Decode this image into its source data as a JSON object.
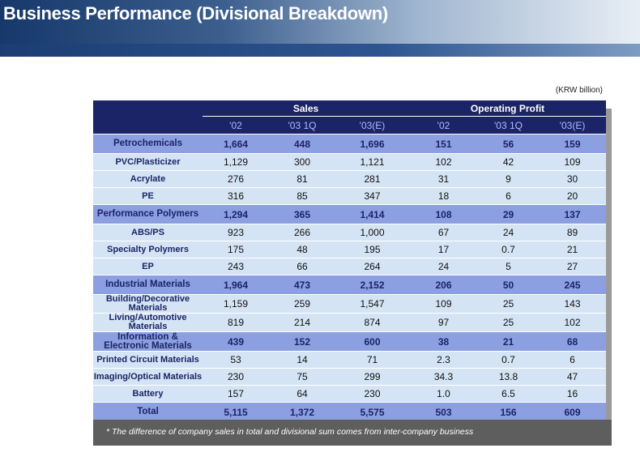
{
  "header": {
    "title": "Business Performance (Divisional Breakdown)"
  },
  "unit": "(KRW billion)",
  "table": {
    "group_headers": [
      "Sales",
      "Operating Profit"
    ],
    "columns": [
      "'02",
      "'03 1Q",
      "'03(E)",
      "'02",
      "'03 1Q",
      "'03(E)"
    ],
    "rows": [
      {
        "label": "Petrochemicals",
        "major": true,
        "cells": [
          "1,664",
          "448",
          "1,696",
          "151",
          "56",
          "159"
        ]
      },
      {
        "label": "PVC/Plasticizer",
        "cells": [
          "1,129",
          "300",
          "1,121",
          "102",
          "42",
          "109"
        ]
      },
      {
        "label": "Acrylate",
        "cells": [
          "276",
          "81",
          "281",
          "31",
          "9",
          "30"
        ]
      },
      {
        "label": "PE",
        "cells": [
          "316",
          "85",
          "347",
          "18",
          "6",
          "20"
        ]
      },
      {
        "label": "Performance Polymers",
        "major": true,
        "cells": [
          "1,294",
          "365",
          "1,414",
          "108",
          "29",
          "137"
        ]
      },
      {
        "label": "ABS/PS",
        "cells": [
          "923",
          "266",
          "1,000",
          "67",
          "24",
          "89"
        ]
      },
      {
        "label": "Specialty Polymers",
        "cells": [
          "175",
          "48",
          "195",
          "17",
          "0.7",
          "21"
        ]
      },
      {
        "label": "EP",
        "cells": [
          "243",
          "66",
          "264",
          "24",
          "5",
          "27"
        ]
      },
      {
        "label": "Industrial Materials",
        "major": true,
        "cells": [
          "1,964",
          "473",
          "2,152",
          "206",
          "50",
          "245"
        ]
      },
      {
        "label": "Building/Decorative Materials",
        "cells": [
          "1,159",
          "259",
          "1,547",
          "109",
          "25",
          "143"
        ]
      },
      {
        "label": "Living/Automotive Materials",
        "cells": [
          "819",
          "214",
          "874",
          "97",
          "25",
          "102"
        ]
      },
      {
        "label": "Information &\nElectronic Materials",
        "major": true,
        "cells": [
          "439",
          "152",
          "600",
          "38",
          "21",
          "68"
        ]
      },
      {
        "label": "Printed Circuit Materials",
        "cells": [
          "53",
          "14",
          "71",
          "2.3",
          "0.7",
          "6"
        ]
      },
      {
        "label": "Imaging/Optical Materials",
        "cells": [
          "230",
          "75",
          "299",
          "34.3",
          "13.8",
          "47"
        ]
      },
      {
        "label": "Battery",
        "cells": [
          "157",
          "64",
          "230",
          "1.0",
          "6.5",
          "16"
        ]
      },
      {
        "label": "Total",
        "major": true,
        "cells": [
          "5,115",
          "1,372",
          "5,575",
          "503",
          "156",
          "609"
        ]
      }
    ]
  },
  "footnote": "* The difference of company sales in total and divisional sum comes from inter-company business"
}
